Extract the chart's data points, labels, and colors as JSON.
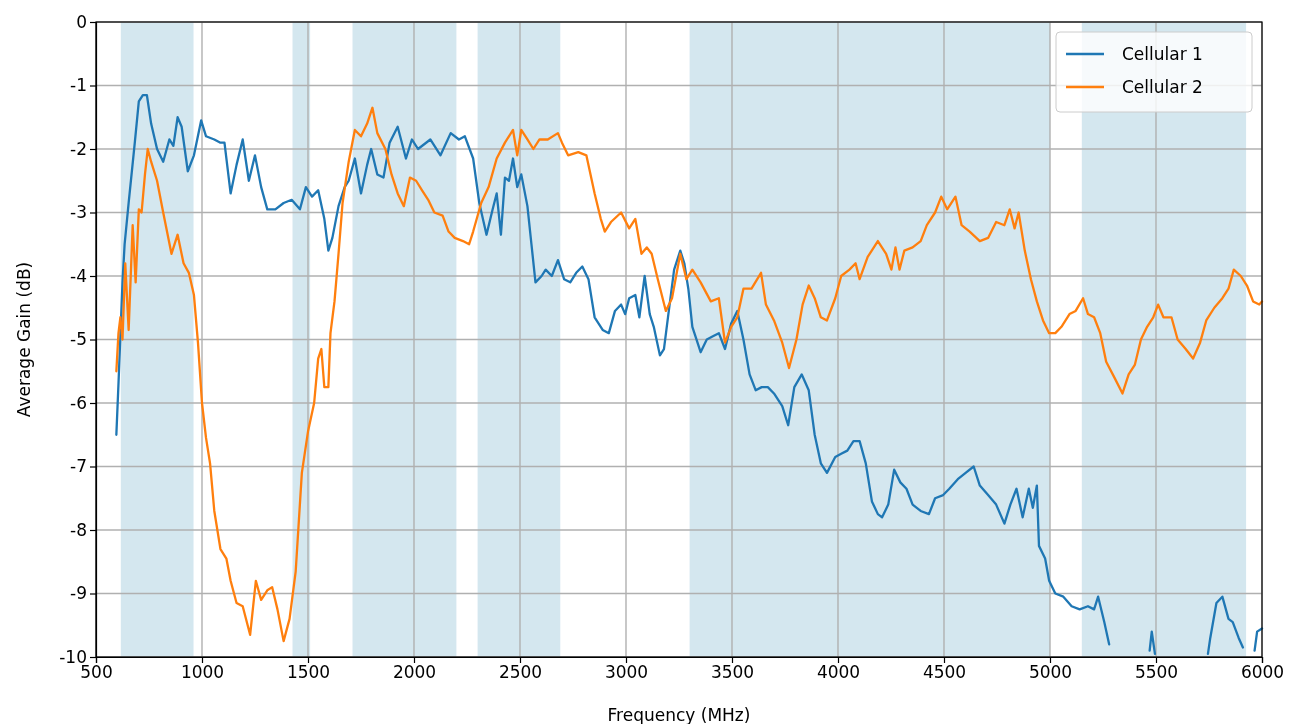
{
  "chart_data": {
    "type": "line",
    "xlabel": "Frequency (MHz)",
    "ylabel": "Average Gain (dB)",
    "xlim": [
      500,
      6000
    ],
    "xticks": [
      500,
      1000,
      1500,
      2000,
      2500,
      3000,
      3500,
      4000,
      4500,
      5000,
      5500,
      6000
    ],
    "ylim": [
      -10,
      0
    ],
    "yticks": [
      0,
      -1,
      -2,
      -3,
      -4,
      -5,
      -6,
      -7,
      -8,
      -9,
      -10
    ],
    "grid": true,
    "legend": "top right",
    "line_style": "solid",
    "bands": [
      {
        "axis": "x",
        "from": 617,
        "to": 960,
        "color": "#d4e7ef"
      },
      {
        "axis": "x",
        "from": 1427,
        "to": 1510,
        "color": "#d4e7ef"
      },
      {
        "axis": "x",
        "from": 1710,
        "to": 2200,
        "color": "#d4e7ef"
      },
      {
        "axis": "x",
        "from": 2300,
        "to": 2690,
        "color": "#d4e7ef"
      },
      {
        "axis": "x",
        "from": 3300,
        "to": 5000,
        "color": "#d4e7ef"
      },
      {
        "axis": "x",
        "from": 5150,
        "to": 5925,
        "color": "#d4e7ef"
      }
    ],
    "series": [
      {
        "name": "Cellular 1",
        "color": "#1f77b4",
        "x": [
          596,
          606,
          625,
          635,
          654,
          683,
          702,
          721,
          740,
          760,
          788,
          817,
          846,
          865,
          885,
          904,
          933,
          962,
          996,
          1019,
          1058,
          1087,
          1106,
          1135,
          1163,
          1192,
          1221,
          1250,
          1279,
          1308,
          1346,
          1385,
          1423,
          1462,
          1490,
          1519,
          1548,
          1577,
          1596,
          1615,
          1644,
          1673,
          1692,
          1721,
          1750,
          1779,
          1798,
          1827,
          1856,
          1885,
          1923,
          1962,
          1990,
          2019,
          2077,
          2125,
          2173,
          2212,
          2240,
          2279,
          2308,
          2342,
          2371,
          2390,
          2410,
          2429,
          2448,
          2467,
          2487,
          2506,
          2535,
          2554,
          2573,
          2602,
          2621,
          2650,
          2679,
          2708,
          2737,
          2765,
          2794,
          2823,
          2852,
          2890,
          2919,
          2948,
          2977,
          2996,
          3015,
          3044,
          3063,
          3088,
          3112,
          3131,
          3160,
          3179,
          3198,
          3227,
          3256,
          3275,
          3294,
          3313,
          3352,
          3381,
          3410,
          3438,
          3467,
          3496,
          3525,
          3554,
          3583,
          3612,
          3640,
          3669,
          3698,
          3737,
          3765,
          3794,
          3829,
          3862,
          3890,
          3919,
          3948,
          3987,
          4015,
          4044,
          4073,
          4102,
          4131,
          4160,
          4188,
          4208,
          4237,
          4265,
          4294,
          4323,
          4352,
          4390,
          4429,
          4458,
          4496,
          4525,
          4565,
          4602,
          4640,
          4669,
          4708,
          4746,
          4785,
          4813,
          4842,
          4871,
          4900,
          4919,
          4938,
          4948,
          4977,
          4996,
          5025,
          5063,
          5102,
          5140,
          5179,
          5208,
          5227,
          5256,
          5279,
          5300,
          5470,
          5480,
          5495,
          5510,
          5745,
          5756,
          5785,
          5813,
          5842,
          5862,
          5890,
          5910,
          5930,
          5965,
          5977,
          6000
        ],
        "values": [
          -6.5,
          -5.7,
          -4.1,
          -3.5,
          -2.85,
          -1.9,
          -1.25,
          -1.15,
          -1.15,
          -1.6,
          -2.0,
          -2.2,
          -1.85,
          -1.95,
          -1.5,
          -1.65,
          -2.35,
          -2.1,
          -1.55,
          -1.8,
          -1.85,
          -1.9,
          -1.9,
          -2.7,
          -2.25,
          -1.85,
          -2.5,
          -2.1,
          -2.6,
          -2.95,
          -2.95,
          -2.85,
          -2.8,
          -2.95,
          -2.6,
          -2.75,
          -2.65,
          -3.1,
          -3.6,
          -3.4,
          -2.9,
          -2.6,
          -2.5,
          -2.15,
          -2.7,
          -2.25,
          -2.0,
          -2.4,
          -2.45,
          -1.9,
          -1.65,
          -2.15,
          -1.85,
          -2.0,
          -1.85,
          -2.1,
          -1.75,
          -1.85,
          -1.8,
          -2.15,
          -2.85,
          -3.35,
          -2.95,
          -2.7,
          -3.35,
          -2.45,
          -2.5,
          -2.15,
          -2.6,
          -2.4,
          -2.9,
          -3.5,
          -4.1,
          -4.0,
          -3.9,
          -4.0,
          -3.75,
          -4.05,
          -4.1,
          -3.95,
          -3.85,
          -4.05,
          -4.65,
          -4.85,
          -4.9,
          -4.55,
          -4.45,
          -4.6,
          -4.35,
          -4.3,
          -4.65,
          -4.0,
          -4.6,
          -4.8,
          -5.25,
          -5.15,
          -4.65,
          -3.9,
          -3.6,
          -3.8,
          -4.2,
          -4.8,
          -5.2,
          -5.0,
          -4.95,
          -4.9,
          -5.15,
          -4.75,
          -4.55,
          -5.0,
          -5.55,
          -5.8,
          -5.75,
          -5.75,
          -5.85,
          -6.05,
          -6.35,
          -5.75,
          -5.55,
          -5.8,
          -6.5,
          -6.95,
          -7.1,
          -6.85,
          -6.8,
          -6.75,
          -6.6,
          -6.6,
          -6.95,
          -7.55,
          -7.75,
          -7.8,
          -7.6,
          -7.05,
          -7.25,
          -7.35,
          -7.6,
          -7.7,
          -7.75,
          -7.5,
          -7.45,
          -7.35,
          -7.2,
          -7.1,
          -7.0,
          -7.3,
          -7.45,
          -7.6,
          -7.9,
          -7.6,
          -7.35,
          -7.8,
          -7.35,
          -7.65,
          -7.3,
          -8.25,
          -8.45,
          -8.8,
          -9.0,
          -9.05,
          -9.2,
          -9.25,
          -9.2,
          -9.25,
          -9.05,
          -9.45,
          -9.8,
          null,
          -9.9,
          -9.6,
          -9.95,
          null,
          -9.95,
          -9.7,
          -9.15,
          -9.05,
          -9.4,
          -9.45,
          -9.7,
          -9.85,
          null,
          -9.9,
          -9.6,
          -9.55
        ]
      },
      {
        "name": "Cellular 2",
        "color": "#ff7f0e",
        "x": [
          596,
          606,
          615,
          625,
          638,
          654,
          673,
          687,
          702,
          715,
          731,
          744,
          760,
          788,
          817,
          856,
          885,
          913,
          938,
          962,
          981,
          1000,
          1019,
          1038,
          1058,
          1087,
          1115,
          1135,
          1163,
          1192,
          1227,
          1254,
          1279,
          1308,
          1331,
          1356,
          1385,
          1413,
          1442,
          1471,
          1500,
          1529,
          1548,
          1563,
          1577,
          1596,
          1606,
          1625,
          1644,
          1663,
          1692,
          1721,
          1750,
          1779,
          1804,
          1827,
          1865,
          1894,
          1923,
          1952,
          1981,
          2010,
          2038,
          2067,
          2096,
          2135,
          2163,
          2192,
          2231,
          2260,
          2279,
          2317,
          2352,
          2390,
          2429,
          2467,
          2487,
          2506,
          2535,
          2563,
          2592,
          2631,
          2679,
          2698,
          2727,
          2775,
          2813,
          2852,
          2881,
          2900,
          2929,
          2977,
          3015,
          3044,
          3073,
          3098,
          3121,
          3150,
          3188,
          3217,
          3256,
          3285,
          3313,
          3352,
          3400,
          3438,
          3467,
          3496,
          3525,
          3554,
          3592,
          3637,
          3660,
          3698,
          3737,
          3769,
          3804,
          3833,
          3862,
          3890,
          3919,
          3948,
          3987,
          4015,
          4054,
          4083,
          4102,
          4140,
          4188,
          4227,
          4252,
          4271,
          4290,
          4313,
          4352,
          4390,
          4419,
          4458,
          4487,
          4515,
          4554,
          4583,
          4621,
          4669,
          4708,
          4746,
          4785,
          4810,
          4833,
          4852,
          4881,
          4910,
          4938,
          4967,
          4996,
          5025,
          5054,
          5092,
          5121,
          5156,
          5179,
          5208,
          5237,
          5265,
          5304,
          5342,
          5371,
          5400,
          5429,
          5458,
          5487,
          5510,
          5535,
          5573,
          5602,
          5640,
          5675,
          5708,
          5737,
          5775,
          5813,
          5842,
          5867,
          5900,
          5929,
          5958,
          5987,
          6000
        ],
        "values": [
          -5.5,
          -4.9,
          -4.65,
          -5.0,
          -3.8,
          -4.85,
          -3.2,
          -4.1,
          -2.95,
          -3.0,
          -2.4,
          -2.0,
          -2.2,
          -2.5,
          -3.0,
          -3.65,
          -3.35,
          -3.8,
          -3.95,
          -4.3,
          -5.05,
          -6.0,
          -6.55,
          -6.95,
          -7.7,
          -8.3,
          -8.45,
          -8.8,
          -9.15,
          -9.2,
          -9.65,
          -8.8,
          -9.1,
          -8.95,
          -8.9,
          -9.25,
          -9.75,
          -9.4,
          -8.65,
          -7.1,
          -6.45,
          -6.0,
          -5.3,
          -5.15,
          -5.75,
          -5.75,
          -4.9,
          -4.4,
          -3.65,
          -2.85,
          -2.2,
          -1.7,
          -1.8,
          -1.6,
          -1.35,
          -1.75,
          -2.0,
          -2.4,
          -2.7,
          -2.9,
          -2.45,
          -2.5,
          -2.65,
          -2.8,
          -3.0,
          -3.05,
          -3.3,
          -3.4,
          -3.45,
          -3.5,
          -3.3,
          -2.85,
          -2.6,
          -2.15,
          -1.9,
          -1.7,
          -2.1,
          -1.7,
          -1.85,
          -2.0,
          -1.85,
          -1.85,
          -1.75,
          -1.9,
          -2.1,
          -2.05,
          -2.1,
          -2.7,
          -3.1,
          -3.3,
          -3.15,
          -3.0,
          -3.25,
          -3.1,
          -3.65,
          -3.55,
          -3.65,
          -4.05,
          -4.55,
          -4.35,
          -3.65,
          -4.05,
          -3.9,
          -4.1,
          -4.4,
          -4.35,
          -5.05,
          -4.8,
          -4.65,
          -4.2,
          -4.2,
          -3.95,
          -4.45,
          -4.7,
          -5.05,
          -5.45,
          -5.0,
          -4.45,
          -4.15,
          -4.35,
          -4.65,
          -4.7,
          -4.35,
          -4.0,
          -3.9,
          -3.8,
          -4.05,
          -3.7,
          -3.45,
          -3.65,
          -3.9,
          -3.55,
          -3.9,
          -3.6,
          -3.55,
          -3.45,
          -3.2,
          -3.0,
          -2.75,
          -2.95,
          -2.75,
          -3.2,
          -3.3,
          -3.45,
          -3.4,
          -3.15,
          -3.2,
          -2.95,
          -3.25,
          -3.0,
          -3.6,
          -4.05,
          -4.4,
          -4.7,
          -4.9,
          -4.9,
          -4.8,
          -4.6,
          -4.55,
          -4.35,
          -4.6,
          -4.65,
          -4.9,
          -5.35,
          -5.6,
          -5.85,
          -5.55,
          -5.4,
          -5.0,
          -4.8,
          -4.65,
          -4.45,
          -4.65,
          -4.65,
          -5.0,
          -5.15,
          -5.3,
          -5.05,
          -4.7,
          -4.5,
          -4.35,
          -4.2,
          -3.9,
          -4.0,
          -4.15,
          -4.4,
          -4.45,
          -4.4
        ]
      }
    ]
  }
}
